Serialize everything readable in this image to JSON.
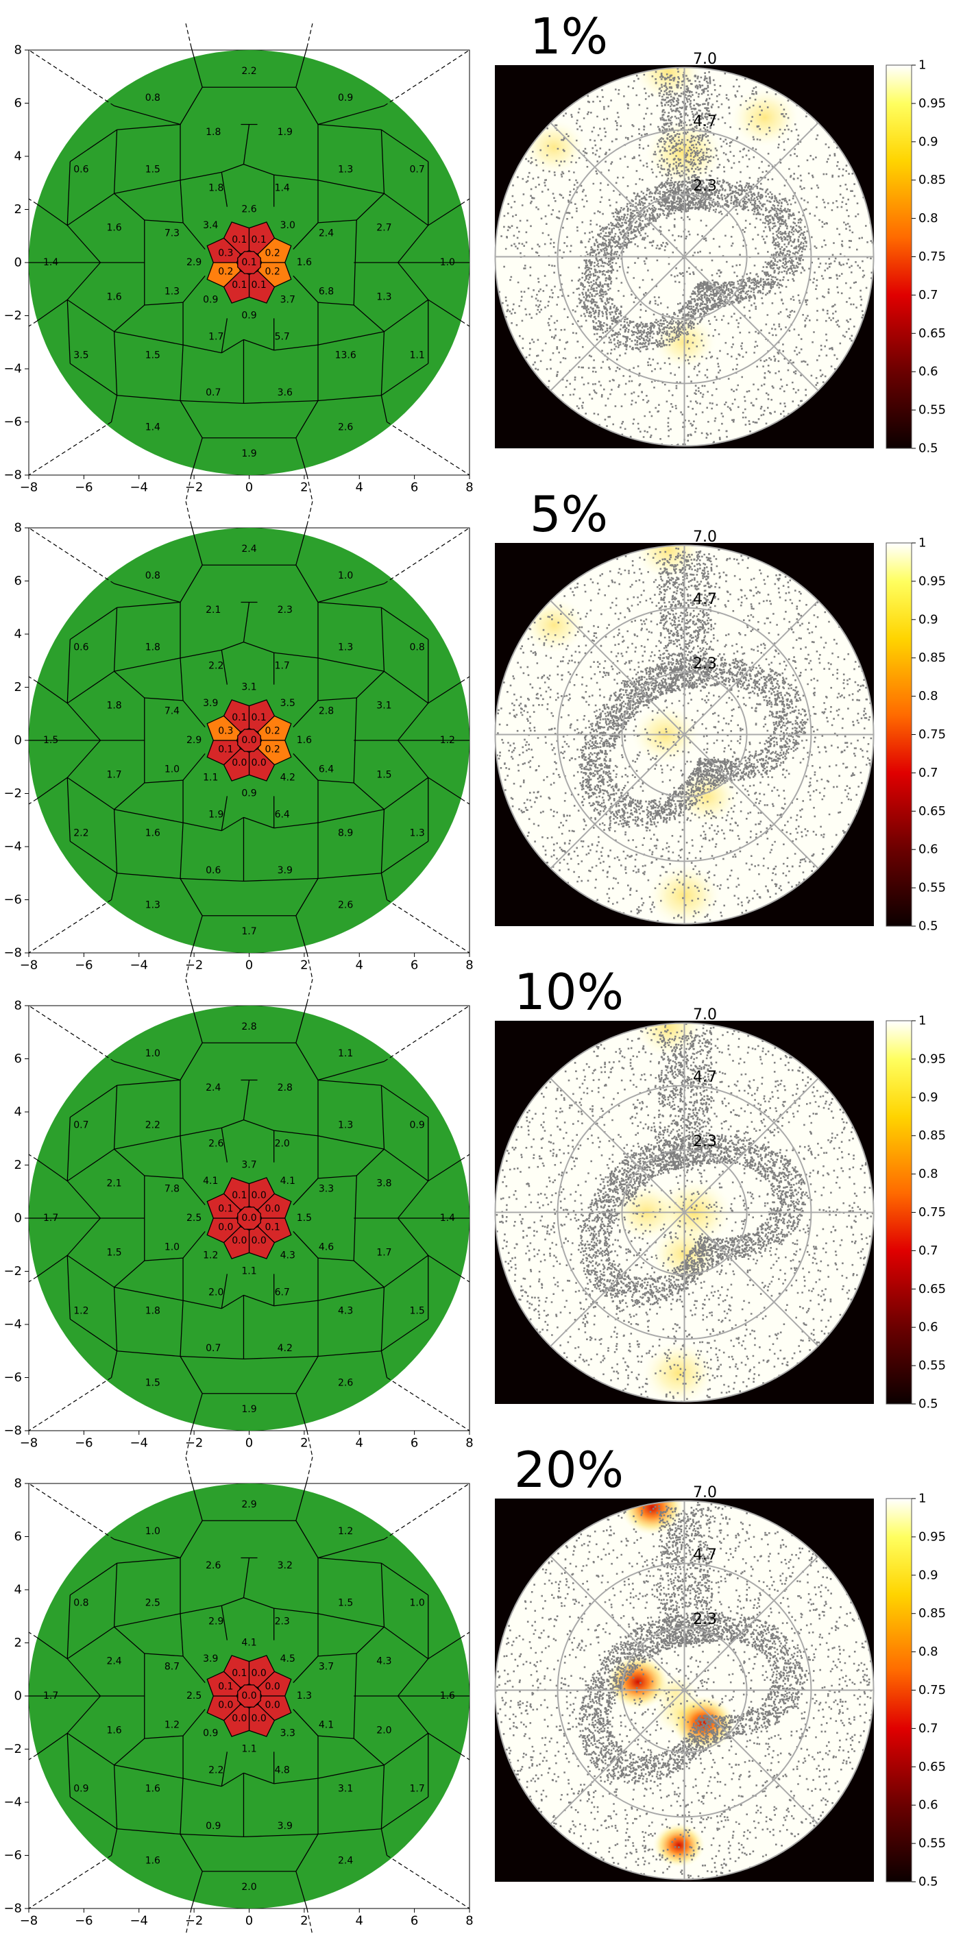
{
  "panels": [
    {
      "percent_label": "1%",
      "voronoi_labels": [
        {
          "x": 0.0,
          "y": 7.2,
          "v": "2.2"
        },
        {
          "x": -3.5,
          "y": 6.2,
          "v": "0.8"
        },
        {
          "x": 3.5,
          "y": 6.2,
          "v": "0.9"
        },
        {
          "x": -1.3,
          "y": 4.9,
          "v": "1.8"
        },
        {
          "x": 1.3,
          "y": 4.9,
          "v": "1.9"
        },
        {
          "x": -6.1,
          "y": 3.5,
          "v": "0.6"
        },
        {
          "x": -3.5,
          "y": 3.5,
          "v": "1.5"
        },
        {
          "x": 3.5,
          "y": 3.5,
          "v": "1.3"
        },
        {
          "x": 6.1,
          "y": 3.5,
          "v": "0.7"
        },
        {
          "x": -1.2,
          "y": 2.8,
          "v": "1.8"
        },
        {
          "x": 1.2,
          "y": 2.8,
          "v": "1.4"
        },
        {
          "x": 0.0,
          "y": 2.0,
          "v": "2.6"
        },
        {
          "x": -4.9,
          "y": 1.3,
          "v": "1.6"
        },
        {
          "x": 4.9,
          "y": 1.3,
          "v": "2.7"
        },
        {
          "x": -2.8,
          "y": 1.1,
          "v": "7.3"
        },
        {
          "x": -1.4,
          "y": 1.4,
          "v": "3.4"
        },
        {
          "x": 1.4,
          "y": 1.4,
          "v": "3.0"
        },
        {
          "x": 2.8,
          "y": 1.1,
          "v": "2.4"
        },
        {
          "x": -7.2,
          "y": 0.0,
          "v": "1.4"
        },
        {
          "x": -2.0,
          "y": 0.0,
          "v": "2.9"
        },
        {
          "x": 2.0,
          "y": 0.0,
          "v": "1.6"
        },
        {
          "x": 7.2,
          "y": 0.0,
          "v": "1.0"
        },
        {
          "x": -4.9,
          "y": -1.3,
          "v": "1.6"
        },
        {
          "x": -2.8,
          "y": -1.1,
          "v": "1.3"
        },
        {
          "x": -1.4,
          "y": -1.4,
          "v": "0.9"
        },
        {
          "x": 1.4,
          "y": -1.4,
          "v": "3.7"
        },
        {
          "x": 2.8,
          "y": -1.1,
          "v": "6.8"
        },
        {
          "x": 4.9,
          "y": -1.3,
          "v": "1.3"
        },
        {
          "x": 0.0,
          "y": -2.0,
          "v": "0.9"
        },
        {
          "x": -1.2,
          "y": -2.8,
          "v": "1.7"
        },
        {
          "x": 1.2,
          "y": -2.8,
          "v": "5.7"
        },
        {
          "x": -6.1,
          "y": -3.5,
          "v": "3.5"
        },
        {
          "x": -3.5,
          "y": -3.5,
          "v": "1.5"
        },
        {
          "x": 3.5,
          "y": -3.5,
          "v": "13.6"
        },
        {
          "x": 6.1,
          "y": -3.5,
          "v": "1.1"
        },
        {
          "x": -1.3,
          "y": -4.9,
          "v": "0.7"
        },
        {
          "x": 1.3,
          "y": -4.9,
          "v": "3.6"
        },
        {
          "x": -3.5,
          "y": -6.2,
          "v": "1.4"
        },
        {
          "x": 3.5,
          "y": -6.2,
          "v": "2.6"
        },
        {
          "x": 0.0,
          "y": -7.2,
          "v": "1.9"
        }
      ],
      "center_values": {
        "center": "0.1",
        "ring": [
          "0.1",
          "0.1",
          "0.2",
          "0.2",
          "0.1",
          "0.1",
          "0.2",
          "0.3"
        ]
      },
      "center_colors": {
        "center": "red",
        "ring": [
          "red",
          "red",
          "orange",
          "orange",
          "red",
          "red",
          "orange",
          "red"
        ]
      },
      "heat_spots": [
        {
          "r": 0.55,
          "theta": 90,
          "intensity": 0.9
        },
        {
          "r": 0.45,
          "theta": 270,
          "intensity": 0.6
        },
        {
          "r": 0.9,
          "theta": 140,
          "intensity": 0.6
        },
        {
          "r": 0.85,
          "theta": 60,
          "intensity": 0.7
        },
        {
          "r": 0.98,
          "theta": 95,
          "intensity": 0.7
        }
      ]
    },
    {
      "percent_label": "5%",
      "voronoi_labels": [
        {
          "x": 0.0,
          "y": 7.2,
          "v": "2.4"
        },
        {
          "x": -3.5,
          "y": 6.2,
          "v": "0.8"
        },
        {
          "x": 3.5,
          "y": 6.2,
          "v": "1.0"
        },
        {
          "x": -1.3,
          "y": 4.9,
          "v": "2.1"
        },
        {
          "x": 1.3,
          "y": 4.9,
          "v": "2.3"
        },
        {
          "x": -6.1,
          "y": 3.5,
          "v": "0.6"
        },
        {
          "x": -3.5,
          "y": 3.5,
          "v": "1.8"
        },
        {
          "x": 3.5,
          "y": 3.5,
          "v": "1.3"
        },
        {
          "x": 6.1,
          "y": 3.5,
          "v": "0.8"
        },
        {
          "x": -1.2,
          "y": 2.8,
          "v": "2.2"
        },
        {
          "x": 1.2,
          "y": 2.8,
          "v": "1.7"
        },
        {
          "x": 0.0,
          "y": 2.0,
          "v": "3.1"
        },
        {
          "x": -4.9,
          "y": 1.3,
          "v": "1.8"
        },
        {
          "x": 4.9,
          "y": 1.3,
          "v": "3.1"
        },
        {
          "x": -2.8,
          "y": 1.1,
          "v": "7.4"
        },
        {
          "x": -1.4,
          "y": 1.4,
          "v": "3.9"
        },
        {
          "x": 1.4,
          "y": 1.4,
          "v": "3.5"
        },
        {
          "x": 2.8,
          "y": 1.1,
          "v": "2.8"
        },
        {
          "x": -7.2,
          "y": 0.0,
          "v": "1.5"
        },
        {
          "x": -2.0,
          "y": 0.0,
          "v": "2.9"
        },
        {
          "x": 2.0,
          "y": 0.0,
          "v": "1.6"
        },
        {
          "x": 7.2,
          "y": 0.0,
          "v": "1.2"
        },
        {
          "x": -4.9,
          "y": -1.3,
          "v": "1.7"
        },
        {
          "x": -2.8,
          "y": -1.1,
          "v": "1.0"
        },
        {
          "x": -1.4,
          "y": -1.4,
          "v": "1.1"
        },
        {
          "x": 1.4,
          "y": -1.4,
          "v": "4.2"
        },
        {
          "x": 2.8,
          "y": -1.1,
          "v": "6.4"
        },
        {
          "x": 4.9,
          "y": -1.3,
          "v": "1.5"
        },
        {
          "x": 0.0,
          "y": -2.0,
          "v": "0.9"
        },
        {
          "x": -1.2,
          "y": -2.8,
          "v": "1.9"
        },
        {
          "x": 1.2,
          "y": -2.8,
          "v": "6.4"
        },
        {
          "x": -6.1,
          "y": -3.5,
          "v": "2.2"
        },
        {
          "x": -3.5,
          "y": -3.5,
          "v": "1.6"
        },
        {
          "x": 3.5,
          "y": -3.5,
          "v": "8.9"
        },
        {
          "x": 6.1,
          "y": -3.5,
          "v": "1.3"
        },
        {
          "x": -1.3,
          "y": -4.9,
          "v": "0.6"
        },
        {
          "x": 1.3,
          "y": -4.9,
          "v": "3.9"
        },
        {
          "x": -3.5,
          "y": -6.2,
          "v": "1.3"
        },
        {
          "x": 3.5,
          "y": -6.2,
          "v": "2.6"
        },
        {
          "x": 0.0,
          "y": -7.2,
          "v": "1.7"
        }
      ],
      "center_values": {
        "center": "0.0",
        "ring": [
          "0.1",
          "0.1",
          "0.2",
          "0.2",
          "0.0",
          "0.0",
          "0.1",
          "0.3"
        ]
      },
      "center_colors": {
        "center": "red",
        "ring": [
          "red",
          "red",
          "orange",
          "orange",
          "red",
          "red",
          "red",
          "orange"
        ]
      },
      "heat_spots": [
        {
          "r": 0.1,
          "theta": 180,
          "intensity": 0.7
        },
        {
          "r": 0.35,
          "theta": 290,
          "intensity": 0.6
        },
        {
          "r": 0.85,
          "theta": 270,
          "intensity": 0.8
        },
        {
          "r": 0.9,
          "theta": 140,
          "intensity": 0.6
        },
        {
          "r": 0.98,
          "theta": 95,
          "intensity": 0.7
        }
      ]
    },
    {
      "percent_label": "10%",
      "voronoi_labels": [
        {
          "x": 0.0,
          "y": 7.2,
          "v": "2.8"
        },
        {
          "x": -3.5,
          "y": 6.2,
          "v": "1.0"
        },
        {
          "x": 3.5,
          "y": 6.2,
          "v": "1.1"
        },
        {
          "x": -1.3,
          "y": 4.9,
          "v": "2.4"
        },
        {
          "x": 1.3,
          "y": 4.9,
          "v": "2.8"
        },
        {
          "x": -6.1,
          "y": 3.5,
          "v": "0.7"
        },
        {
          "x": -3.5,
          "y": 3.5,
          "v": "2.2"
        },
        {
          "x": 3.5,
          "y": 3.5,
          "v": "1.3"
        },
        {
          "x": 6.1,
          "y": 3.5,
          "v": "0.9"
        },
        {
          "x": -1.2,
          "y": 2.8,
          "v": "2.6"
        },
        {
          "x": 1.2,
          "y": 2.8,
          "v": "2.0"
        },
        {
          "x": 0.0,
          "y": 2.0,
          "v": "3.7"
        },
        {
          "x": -4.9,
          "y": 1.3,
          "v": "2.1"
        },
        {
          "x": 4.9,
          "y": 1.3,
          "v": "3.8"
        },
        {
          "x": -2.8,
          "y": 1.1,
          "v": "7.8"
        },
        {
          "x": -1.4,
          "y": 1.4,
          "v": "4.1"
        },
        {
          "x": 1.4,
          "y": 1.4,
          "v": "4.1"
        },
        {
          "x": 2.8,
          "y": 1.1,
          "v": "3.3"
        },
        {
          "x": -7.2,
          "y": 0.0,
          "v": "1.7"
        },
        {
          "x": -2.0,
          "y": 0.0,
          "v": "2.5"
        },
        {
          "x": 2.0,
          "y": 0.0,
          "v": "1.5"
        },
        {
          "x": 7.2,
          "y": 0.0,
          "v": "1.4"
        },
        {
          "x": -4.9,
          "y": -1.3,
          "v": "1.5"
        },
        {
          "x": -2.8,
          "y": -1.1,
          "v": "1.0"
        },
        {
          "x": -1.4,
          "y": -1.4,
          "v": "1.2"
        },
        {
          "x": 1.4,
          "y": -1.4,
          "v": "4.3"
        },
        {
          "x": 2.8,
          "y": -1.1,
          "v": "4.6"
        },
        {
          "x": 4.9,
          "y": -1.3,
          "v": "1.7"
        },
        {
          "x": 0.0,
          "y": -2.0,
          "v": "1.1"
        },
        {
          "x": -1.2,
          "y": -2.8,
          "v": "2.0"
        },
        {
          "x": 1.2,
          "y": -2.8,
          "v": "6.7"
        },
        {
          "x": -6.1,
          "y": -3.5,
          "v": "1.2"
        },
        {
          "x": -3.5,
          "y": -3.5,
          "v": "1.8"
        },
        {
          "x": 3.5,
          "y": -3.5,
          "v": "4.3"
        },
        {
          "x": 6.1,
          "y": -3.5,
          "v": "1.5"
        },
        {
          "x": -1.3,
          "y": -4.9,
          "v": "0.7"
        },
        {
          "x": 1.3,
          "y": -4.9,
          "v": "4.2"
        },
        {
          "x": -3.5,
          "y": -6.2,
          "v": "1.5"
        },
        {
          "x": 3.5,
          "y": -6.2,
          "v": "2.6"
        },
        {
          "x": 0.0,
          "y": -7.2,
          "v": "1.9"
        }
      ],
      "center_values": {
        "center": "0.0",
        "ring": [
          "0.1",
          "0.0",
          "0.0",
          "0.1",
          "0.0",
          "0.0",
          "0.0",
          "0.1"
        ]
      },
      "center_colors": {
        "center": "red",
        "ring": [
          "red",
          "red",
          "red",
          "red",
          "red",
          "red",
          "red",
          "red"
        ]
      },
      "heat_spots": [
        {
          "r": 0.05,
          "theta": 0,
          "intensity": 0.9
        },
        {
          "r": 0.22,
          "theta": 270,
          "intensity": 0.7
        },
        {
          "r": 0.2,
          "theta": 180,
          "intensity": 0.7
        },
        {
          "r": 0.85,
          "theta": 268,
          "intensity": 0.8
        },
        {
          "r": 0.98,
          "theta": 95,
          "intensity": 0.7
        }
      ]
    },
    {
      "percent_label": "20%",
      "voronoi_labels": [
        {
          "x": 0.0,
          "y": 7.2,
          "v": "2.9"
        },
        {
          "x": -3.5,
          "y": 6.2,
          "v": "1.0"
        },
        {
          "x": 3.5,
          "y": 6.2,
          "v": "1.2"
        },
        {
          "x": -1.3,
          "y": 4.9,
          "v": "2.6"
        },
        {
          "x": 1.3,
          "y": 4.9,
          "v": "3.2"
        },
        {
          "x": -6.1,
          "y": 3.5,
          "v": "0.8"
        },
        {
          "x": -3.5,
          "y": 3.5,
          "v": "2.5"
        },
        {
          "x": 3.5,
          "y": 3.5,
          "v": "1.5"
        },
        {
          "x": 6.1,
          "y": 3.5,
          "v": "1.0"
        },
        {
          "x": -1.2,
          "y": 2.8,
          "v": "2.9"
        },
        {
          "x": 1.2,
          "y": 2.8,
          "v": "2.3"
        },
        {
          "x": 0.0,
          "y": 2.0,
          "v": "4.1"
        },
        {
          "x": -4.9,
          "y": 1.3,
          "v": "2.4"
        },
        {
          "x": 4.9,
          "y": 1.3,
          "v": "4.3"
        },
        {
          "x": -2.8,
          "y": 1.1,
          "v": "8.7"
        },
        {
          "x": -1.4,
          "y": 1.4,
          "v": "3.9"
        },
        {
          "x": 1.4,
          "y": 1.4,
          "v": "4.5"
        },
        {
          "x": 2.8,
          "y": 1.1,
          "v": "3.7"
        },
        {
          "x": -7.2,
          "y": 0.0,
          "v": "1.7"
        },
        {
          "x": -2.0,
          "y": 0.0,
          "v": "2.5"
        },
        {
          "x": 2.0,
          "y": 0.0,
          "v": "1.3"
        },
        {
          "x": 7.2,
          "y": 0.0,
          "v": "1.6"
        },
        {
          "x": -4.9,
          "y": -1.3,
          "v": "1.6"
        },
        {
          "x": -2.8,
          "y": -1.1,
          "v": "1.2"
        },
        {
          "x": -1.4,
          "y": -1.4,
          "v": "0.9"
        },
        {
          "x": 1.4,
          "y": -1.4,
          "v": "3.3"
        },
        {
          "x": 2.8,
          "y": -1.1,
          "v": "4.1"
        },
        {
          "x": 4.9,
          "y": -1.3,
          "v": "2.0"
        },
        {
          "x": 0.0,
          "y": -2.0,
          "v": "1.1"
        },
        {
          "x": -1.2,
          "y": -2.8,
          "v": "2.2"
        },
        {
          "x": 1.2,
          "y": -2.8,
          "v": "4.8"
        },
        {
          "x": -6.1,
          "y": -3.5,
          "v": "0.9"
        },
        {
          "x": -3.5,
          "y": -3.5,
          "v": "1.6"
        },
        {
          "x": 3.5,
          "y": -3.5,
          "v": "3.1"
        },
        {
          "x": 6.1,
          "y": -3.5,
          "v": "1.7"
        },
        {
          "x": -1.3,
          "y": -4.9,
          "v": "0.9"
        },
        {
          "x": 1.3,
          "y": -4.9,
          "v": "3.9"
        },
        {
          "x": -3.5,
          "y": -6.2,
          "v": "1.6"
        },
        {
          "x": 3.5,
          "y": -6.2,
          "v": "2.4"
        },
        {
          "x": 0.0,
          "y": -7.2,
          "v": "2.0"
        }
      ],
      "center_values": {
        "center": "0.0",
        "ring": [
          "0.1",
          "0.0",
          "0.0",
          "0.0",
          "0.0",
          "0.0",
          "0.0",
          "0.1"
        ]
      },
      "center_colors": {
        "center": "red",
        "ring": [
          "red",
          "red",
          "red",
          "red",
          "red",
          "red",
          "red",
          "red"
        ]
      },
      "heat_spots": [
        {
          "r": 0.05,
          "theta": 200,
          "intensity": 0.25
        },
        {
          "r": 0.12,
          "theta": 260,
          "intensity": 0.4
        },
        {
          "r": 0.2,
          "theta": 300,
          "intensity": 0.6
        },
        {
          "r": 0.25,
          "theta": 170,
          "intensity": 0.6
        },
        {
          "r": 0.82,
          "theta": 268,
          "intensity": 0.35
        },
        {
          "r": 0.98,
          "theta": 100,
          "intensity": 0.6
        }
      ]
    }
  ],
  "left_axis_ticks": [
    "−8",
    "−6",
    "−4",
    "−2",
    "0",
    "2",
    "4",
    "6",
    "8"
  ],
  "polar_ring_labels": [
    "7.0",
    "4.7",
    "2.3"
  ],
  "colorbar_ticks": [
    "1",
    "0.95",
    "0.9",
    "0.85",
    "0.8",
    "0.75",
    "0.7",
    "0.65",
    "0.6",
    "0.55",
    "0.5"
  ],
  "colors": {
    "green": "#2ca02c",
    "red": "#d62728",
    "orange": "#ff7f0e",
    "scatter": "#808080",
    "polar_grid": "#a9a9a9",
    "polar_bg": "#080000"
  },
  "chart_data": [
    {
      "type": "heatmap",
      "title": "1%",
      "xlim": [
        -8,
        8
      ],
      "ylim": [
        -8,
        8
      ],
      "cell_values": [
        "2.2",
        "0.8",
        "0.9",
        "1.8",
        "1.9",
        "0.6",
        "1.5",
        "1.3",
        "0.7",
        "1.8",
        "1.4",
        "2.6",
        "1.6",
        "2.7",
        "7.3",
        "3.4",
        "3.0",
        "2.4",
        "1.4",
        "2.9",
        "1.6",
        "1.0",
        "1.6",
        "1.3",
        "0.9",
        "3.7",
        "6.8",
        "1.3",
        "0.9",
        "1.7",
        "5.7",
        "3.5",
        "1.5",
        "13.6",
        "1.1",
        "0.7",
        "3.6",
        "1.4",
        "2.6",
        "1.9",
        "0.1",
        "0.1",
        "0.1",
        "0.2",
        "0.2",
        "0.1",
        "0.1",
        "0.2",
        "0.3"
      ],
      "colorbar_range": [
        0.5,
        1
      ],
      "polar_r_labels": [
        "7.0",
        "4.7",
        "2.3"
      ]
    },
    {
      "type": "heatmap",
      "title": "5%",
      "xlim": [
        -8,
        8
      ],
      "ylim": [
        -8,
        8
      ],
      "colorbar_range": [
        0.5,
        1
      ],
      "polar_r_labels": [
        "7.0",
        "4.7",
        "2.3"
      ]
    },
    {
      "type": "heatmap",
      "title": "10%",
      "xlim": [
        -8,
        8
      ],
      "ylim": [
        -8,
        8
      ],
      "colorbar_range": [
        0.5,
        1
      ],
      "polar_r_labels": [
        "7.0",
        "4.7",
        "2.3"
      ]
    },
    {
      "type": "heatmap",
      "title": "20%",
      "xlim": [
        -8,
        8
      ],
      "ylim": [
        -8,
        8
      ],
      "colorbar_range": [
        0.5,
        1
      ],
      "polar_r_labels": [
        "7.0",
        "4.7",
        "2.3"
      ]
    }
  ]
}
